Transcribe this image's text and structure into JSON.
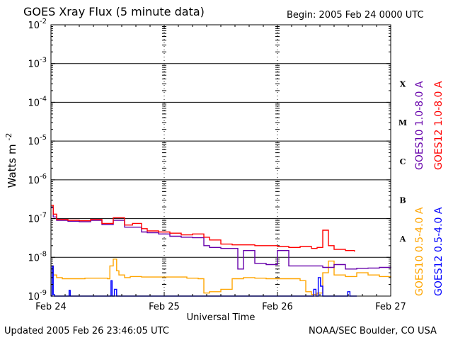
{
  "header": {
    "title": "GOES Xray Flux (5 minute data)",
    "begin": "Begin:  2005 Feb 24 0000 UTC"
  },
  "footer": {
    "updated": "Updated 2005 Feb 26 23:46:05 UTC",
    "credit": "NOAA/SEC Boulder, CO USA"
  },
  "colors": {
    "goes10_long": "#6600aa",
    "goes12_long": "#ff0000",
    "goes10_short": "#ffa500",
    "goes12_short": "#0000ff",
    "grid": "#000000"
  },
  "chart_data": {
    "type": "line",
    "title": "GOES Xray Flux (5 minute data)",
    "xlabel": "Universal Time",
    "ylabel": "Watts m",
    "ylabel_sup": "-2",
    "y_scale": "log",
    "ylim": [
      1e-09,
      0.01
    ],
    "x_units": "days since 2005 Feb 24 0000 UTC",
    "xlim": [
      0,
      3
    ],
    "x_ticks": [
      {
        "value": 0,
        "label": "Feb 24"
      },
      {
        "value": 1,
        "label": "Feb 25"
      },
      {
        "value": 2,
        "label": "Feb 26"
      },
      {
        "value": 3,
        "label": "Feb 27"
      }
    ],
    "y_ticks": [
      {
        "value": 1e-09,
        "base": "10",
        "exp": "-9"
      },
      {
        "value": 1e-08,
        "base": "10",
        "exp": "-8"
      },
      {
        "value": 1e-07,
        "base": "10",
        "exp": "-7"
      },
      {
        "value": 1e-06,
        "base": "10",
        "exp": "-6"
      },
      {
        "value": 1e-05,
        "base": "10",
        "exp": "-5"
      },
      {
        "value": 0.0001,
        "base": "10",
        "exp": "-4"
      },
      {
        "value": 0.001,
        "base": "10",
        "exp": "-3"
      },
      {
        "value": 0.01,
        "base": "10",
        "exp": "-2"
      }
    ],
    "flare_classes": [
      {
        "label": "A",
        "value": 3e-08
      },
      {
        "label": "B",
        "value": 3e-07
      },
      {
        "label": "C",
        "value": 3e-06
      },
      {
        "label": "M",
        "value": 3e-05
      },
      {
        "label": "X",
        "value": 0.0003
      }
    ],
    "grid": true,
    "series": [
      {
        "name": "GOES12 1.0-8.0 A",
        "color": "#ff0000",
        "x": [
          0,
          0.02,
          0.05,
          0.15,
          0.25,
          0.35,
          0.45,
          0.55,
          0.65,
          0.72,
          0.8,
          0.85,
          0.95,
          1.05,
          1.15,
          1.25,
          1.35,
          1.4,
          1.5,
          1.6,
          1.7,
          1.8,
          1.9,
          2.0,
          2.1,
          2.2,
          2.3,
          2.35,
          2.4,
          2.45,
          2.5,
          2.6,
          2.68
        ],
        "y": [
          2.2e-07,
          1.3e-07,
          9.5e-08,
          9e-08,
          8.8e-08,
          9.5e-08,
          7.5e-08,
          1.05e-07,
          6.8e-08,
          7.5e-08,
          5.5e-08,
          4.8e-08,
          4.5e-08,
          4.2e-08,
          3.8e-08,
          4e-08,
          3.3e-08,
          2.8e-08,
          2.2e-08,
          2.1e-08,
          2.1e-08,
          2e-08,
          2e-08,
          1.9e-08,
          1.8e-08,
          1.9e-08,
          1.7e-08,
          1.8e-08,
          5e-08,
          2e-08,
          1.6e-08,
          1.5e-08,
          1.4e-08
        ]
      },
      {
        "name": "GOES10 1.0-8.0 A",
        "color": "#6600aa",
        "x": [
          0,
          0.02,
          0.05,
          0.15,
          0.25,
          0.35,
          0.45,
          0.55,
          0.65,
          0.72,
          0.8,
          0.85,
          0.95,
          1.05,
          1.15,
          1.25,
          1.35,
          1.4,
          1.5,
          1.6,
          1.65,
          1.7,
          1.8,
          1.9,
          2.0,
          2.1,
          2.2,
          2.3,
          2.4,
          2.5,
          2.6,
          2.7,
          2.8,
          2.9,
          3.0
        ],
        "y": [
          1.9e-07,
          1.1e-07,
          9e-08,
          8.5e-08,
          8.3e-08,
          9e-08,
          7e-08,
          9e-08,
          6e-08,
          6e-08,
          4.5e-08,
          4.3e-08,
          4e-08,
          3.5e-08,
          3.3e-08,
          3.2e-08,
          2e-08,
          1.8e-08,
          1.7e-08,
          1.7e-08,
          5e-09,
          1.5e-08,
          7e-09,
          6.5e-09,
          1.5e-08,
          6e-09,
          6e-09,
          6e-09,
          5.5e-09,
          6.5e-09,
          5e-09,
          5.2e-09,
          5.3e-09,
          5.5e-09,
          5.7e-09
        ]
      },
      {
        "name": "GOES10 0.5-4.0 A",
        "color": "#ffa500",
        "x": [
          0,
          0.02,
          0.05,
          0.1,
          0.3,
          0.5,
          0.52,
          0.55,
          0.58,
          0.6,
          0.65,
          0.7,
          0.8,
          1.0,
          1.2,
          1.3,
          1.35,
          1.4,
          1.5,
          1.6,
          1.7,
          1.8,
          1.9,
          2.0,
          2.1,
          2.2,
          2.25,
          2.3,
          2.35,
          2.4,
          2.45,
          2.5,
          2.6,
          2.7,
          2.8,
          2.9,
          3.0
        ],
        "y": [
          6e-09,
          3.5e-09,
          3e-09,
          2.8e-09,
          2.9e-09,
          2.8e-09,
          6e-09,
          9e-09,
          4.5e-09,
          3.5e-09,
          3e-09,
          3.2e-09,
          3.1e-09,
          3.1e-09,
          2.9e-09,
          2.8e-09,
          1.2e-09,
          1.3e-09,
          1.5e-09,
          2.8e-09,
          3e-09,
          2.9e-09,
          2.8e-09,
          2.8e-09,
          2.8e-09,
          2.5e-09,
          1.3e-09,
          1.1e-09,
          1.2e-09,
          4e-09,
          8e-09,
          3.5e-09,
          3.2e-09,
          4e-09,
          3.5e-09,
          3.2e-09,
          3e-09
        ]
      },
      {
        "name": "GOES12 0.5-4.0 A",
        "color": "#0000ff",
        "x": [
          0,
          0.01,
          0.02,
          0.03,
          0.04,
          0.1,
          0.15,
          0.16,
          0.17,
          0.5,
          0.52,
          0.53,
          0.54,
          0.56,
          0.58,
          0.6,
          0.62,
          1.0,
          2.0,
          2.3,
          2.32,
          2.34,
          2.36,
          2.38,
          2.4,
          2.42,
          2.5,
          2.6,
          2.62,
          2.64,
          2.7
        ],
        "y": [
          1e-09,
          6e-09,
          1.1e-09,
          1e-09,
          1e-09,
          1e-09,
          1e-09,
          1.4e-09,
          1e-09,
          1e-09,
          1e-09,
          2.5e-09,
          1e-09,
          1.5e-09,
          1e-09,
          1e-09,
          1e-09,
          1e-09,
          1e-09,
          1e-09,
          1.5e-09,
          1e-09,
          3e-09,
          1.8e-09,
          1e-09,
          1e-09,
          1e-09,
          1e-09,
          1.3e-09,
          1e-09,
          1e-09
        ]
      }
    ]
  }
}
